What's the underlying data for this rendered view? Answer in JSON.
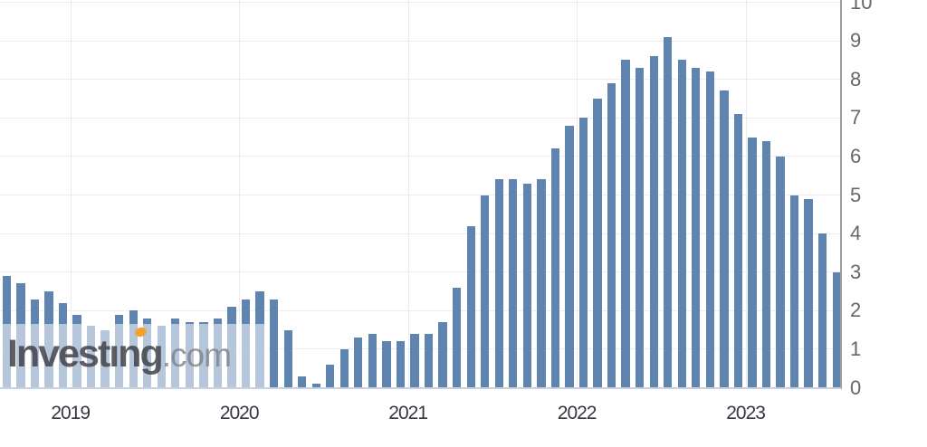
{
  "watermark": {
    "brand": "Investing",
    "brand_display": "Investıng",
    "suffix": ".com",
    "accent_color": "#f5a02d"
  },
  "colors": {
    "bar": "#5e84af",
    "veil": "rgba(255,255,255,0.55)",
    "grid_horizontal": "#ededed",
    "grid_vertical": "#ececec",
    "y_axis_line": "#9e9e9e",
    "x_axis_line": "#c6d2e2",
    "y_label": "#63676e",
    "x_label": "#34383e"
  },
  "chart_data": {
    "type": "bar",
    "title": "",
    "xlabel": "",
    "ylabel": "",
    "grid": true,
    "y_axis_position": "right",
    "ylim": [
      0,
      10
    ],
    "y_ticks": [
      0,
      1,
      2,
      3,
      4,
      5,
      6,
      7,
      8,
      9,
      10
    ],
    "x_tick_labels": [
      "2019",
      "2020",
      "2021",
      "2022",
      "2023"
    ],
    "x_tick_bar_indices": [
      5,
      17,
      29,
      41,
      53
    ],
    "values": [
      2.9,
      2.7,
      2.3,
      2.5,
      2.2,
      1.9,
      1.6,
      1.5,
      1.9,
      2.0,
      1.8,
      1.6,
      1.8,
      1.7,
      1.7,
      1.8,
      2.1,
      2.3,
      2.5,
      2.3,
      1.5,
      0.3,
      0.1,
      0.6,
      1.0,
      1.3,
      1.4,
      1.2,
      1.2,
      1.4,
      1.4,
      1.7,
      2.6,
      4.2,
      5.0,
      5.4,
      5.4,
      5.3,
      5.4,
      6.2,
      6.8,
      7.0,
      7.5,
      7.9,
      8.5,
      8.3,
      8.6,
      9.1,
      8.5,
      8.3,
      8.2,
      7.7,
      7.1,
      6.5,
      6.4,
      6.0,
      5.0,
      4.9,
      4.0,
      3.0
    ]
  }
}
